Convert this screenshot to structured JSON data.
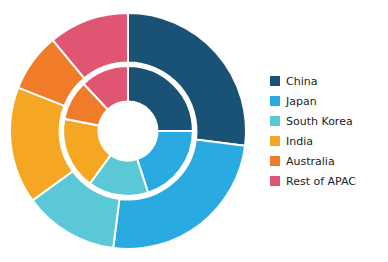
{
  "chart_data": {
    "type": "donut",
    "categories": [
      "China",
      "Japan",
      "South Korea",
      "India",
      "Australia",
      "Rest of APAC"
    ],
    "colors": [
      "#1a5276",
      "#29abe2",
      "#5bc8d8",
      "#f5a623",
      "#f07c2a",
      "#e05571"
    ],
    "series": [
      {
        "values": [
          27,
          25,
          13,
          16,
          8,
          11
        ]
      },
      {
        "values": [
          25,
          20,
          15,
          18,
          10,
          12
        ]
      }
    ],
    "legend": "right"
  }
}
